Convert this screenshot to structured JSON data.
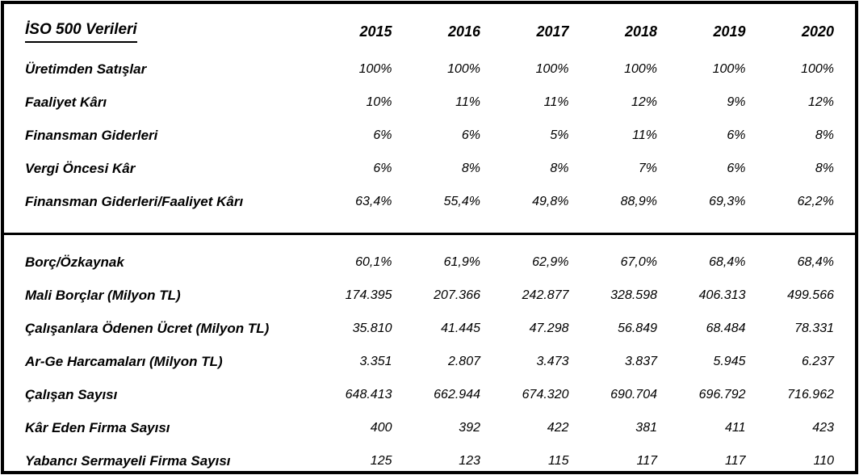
{
  "colors": {
    "border": "#000000",
    "text": "#000000",
    "background": "#ffffff"
  },
  "table": {
    "title": "İSO 500 Verileri",
    "years": [
      "2015",
      "2016",
      "2017",
      "2018",
      "2019",
      "2020"
    ],
    "sections": [
      {
        "rows": [
          {
            "label": "Üretimden Satışlar",
            "values": [
              "100%",
              "100%",
              "100%",
              "100%",
              "100%",
              "100%"
            ]
          },
          {
            "label": "Faaliyet Kârı",
            "values": [
              "10%",
              "11%",
              "11%",
              "12%",
              "9%",
              "12%"
            ]
          },
          {
            "label": "Finansman Giderleri",
            "values": [
              "6%",
              "6%",
              "5%",
              "11%",
              "6%",
              "8%"
            ]
          },
          {
            "label": "Vergi Öncesi Kâr",
            "values": [
              "6%",
              "8%",
              "8%",
              "7%",
              "6%",
              "8%"
            ]
          },
          {
            "label": "Finansman Giderleri/Faaliyet Kârı",
            "values": [
              "63,4%",
              "55,4%",
              "49,8%",
              "88,9%",
              "69,3%",
              "62,2%"
            ]
          }
        ]
      },
      {
        "rows": [
          {
            "label": "Borç/Özkaynak",
            "values": [
              "60,1%",
              "61,9%",
              "62,9%",
              "67,0%",
              "68,4%",
              "68,4%"
            ]
          },
          {
            "label": "Mali Borçlar (Milyon TL)",
            "values": [
              "174.395",
              "207.366",
              "242.877",
              "328.598",
              "406.313",
              "499.566"
            ]
          },
          {
            "label": "Çalışanlara Ödenen Ücret (Milyon TL)",
            "values": [
              "35.810",
              "41.445",
              "47.298",
              "56.849",
              "68.484",
              "78.331"
            ]
          },
          {
            "label": "Ar-Ge Harcamaları (Milyon TL)",
            "values": [
              "3.351",
              "2.807",
              "3.473",
              "3.837",
              "5.945",
              "6.237"
            ]
          },
          {
            "label": "Çalışan Sayısı",
            "values": [
              "648.413",
              "662.944",
              "674.320",
              "690.704",
              "696.792",
              "716.962"
            ]
          },
          {
            "label": "Kâr Eden Firma Sayısı",
            "values": [
              "400",
              "392",
              "422",
              "381",
              "411",
              "423"
            ]
          },
          {
            "label": "Yabancı Sermayeli Firma Sayısı",
            "values": [
              "125",
              "123",
              "115",
              "117",
              "117",
              "110"
            ]
          }
        ]
      }
    ]
  }
}
